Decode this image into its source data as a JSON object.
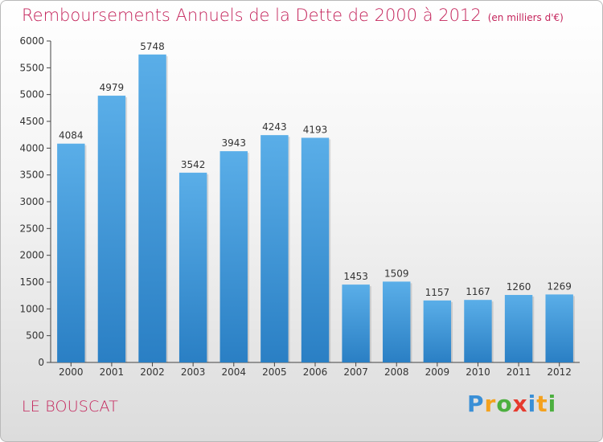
{
  "chart_data": {
    "type": "bar",
    "title": "Remboursements Annuels de la Dette de 2000 à 2012",
    "unit_note": "(en milliers d'€)",
    "categories": [
      "2000",
      "2001",
      "2002",
      "2003",
      "2004",
      "2005",
      "2006",
      "2007",
      "2008",
      "2009",
      "2010",
      "2011",
      "2012"
    ],
    "values": [
      4084,
      4979,
      5748,
      3542,
      3943,
      4243,
      4193,
      1453,
      1509,
      1157,
      1167,
      1260,
      1269
    ],
    "yticks": [
      0,
      500,
      1000,
      1500,
      2000,
      2500,
      3000,
      3500,
      4000,
      4500,
      5000,
      5500,
      6000
    ],
    "ylim": [
      0,
      6000
    ],
    "grid": false,
    "bar_color_top": "#5aaee8",
    "bar_color_bottom": "#2a7fc4"
  },
  "subtitle_location": "LE BOUSCAT",
  "logo": {
    "letters": [
      "P",
      "r",
      "o",
      "x",
      "i",
      "t",
      "i"
    ],
    "colors": [
      "#3a8fd6",
      "#f4a21e",
      "#4caf3f",
      "#e63a2e",
      "#3a8fd6",
      "#f4a21e",
      "#4caf3f"
    ]
  },
  "colors": {
    "accent": "#c4245b"
  }
}
